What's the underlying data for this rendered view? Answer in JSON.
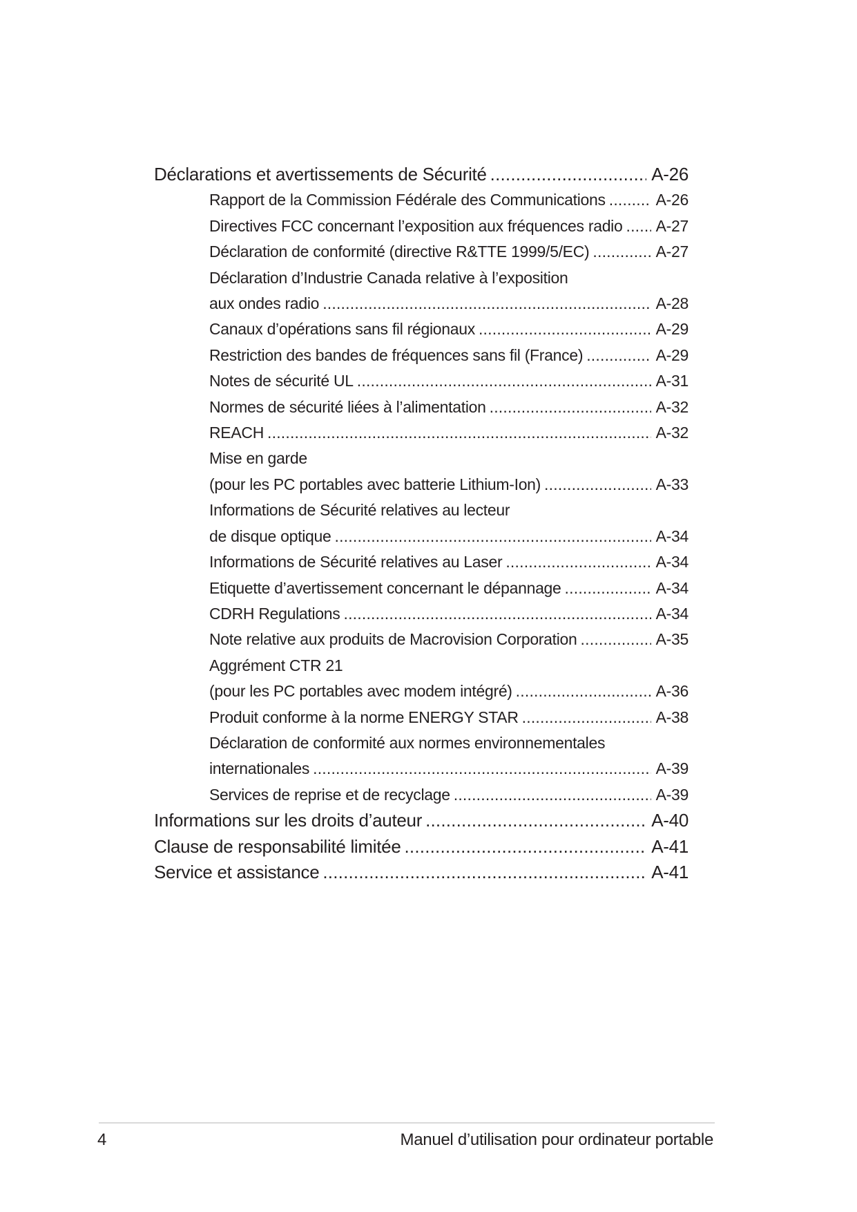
{
  "toc": {
    "entries": [
      {
        "level": 0,
        "lines": [
          "Déclarations et avertissements de Sécurité"
        ],
        "page": "A-26"
      },
      {
        "level": 1,
        "lines": [
          "Rapport de la Commission Fédérale des Communications"
        ],
        "page": "A-26"
      },
      {
        "level": 1,
        "lines": [
          "Directives FCC concernant l’exposition aux fréquences radio"
        ],
        "page": "A-27"
      },
      {
        "level": 1,
        "lines": [
          "Déclaration de conformité (directive R&TTE 1999/5/EC)"
        ],
        "page": "A-27"
      },
      {
        "level": 1,
        "lines": [
          "Déclaration d’Industrie Canada relative à l’exposition",
          "aux ondes radio"
        ],
        "page": "A-28"
      },
      {
        "level": 1,
        "lines": [
          "Canaux d’opérations sans fil régionaux"
        ],
        "page": "A-29"
      },
      {
        "level": 1,
        "lines": [
          "Restriction des bandes de fréquences sans fil (France)"
        ],
        "page": "A-29"
      },
      {
        "level": 1,
        "lines": [
          "Notes de sécurité UL"
        ],
        "page": "A-31"
      },
      {
        "level": 1,
        "lines": [
          "Normes de sécurité liées à l’alimentation"
        ],
        "page": "A-32"
      },
      {
        "level": 1,
        "lines": [
          "REACH"
        ],
        "page": "A-32"
      },
      {
        "level": 1,
        "lines": [
          "Mise en garde",
          "(pour les PC portables avec batterie Lithium-Ion)"
        ],
        "page": "A-33"
      },
      {
        "level": 1,
        "lines": [
          "Informations de Sécurité relatives au lecteur",
          "de disque optique"
        ],
        "page": "A-34"
      },
      {
        "level": 1,
        "lines": [
          "Informations de Sécurité relatives au Laser"
        ],
        "page": "A-34"
      },
      {
        "level": 1,
        "lines": [
          "Etiquette d’avertissement concernant le dépannage"
        ],
        "page": "A-34"
      },
      {
        "level": 1,
        "lines": [
          "CDRH Regulations"
        ],
        "page": "A-34"
      },
      {
        "level": 1,
        "lines": [
          "Note relative aux produits de Macrovision Corporation"
        ],
        "page": "A-35"
      },
      {
        "level": 1,
        "lines": [
          "Aggrément CTR 21",
          "(pour les PC portables avec modem intégré)"
        ],
        "page": "A-36"
      },
      {
        "level": 1,
        "lines": [
          "Produit conforme à la norme ENERGY STAR"
        ],
        "page": "A-38"
      },
      {
        "level": 1,
        "lines": [
          "Déclaration de conformité aux normes environnementales",
          "internationales"
        ],
        "page": "A-39"
      },
      {
        "level": 1,
        "lines": [
          "Services de reprise et de recyclage"
        ],
        "page": "A-39"
      },
      {
        "level": 0,
        "lines": [
          "Informations sur les droits d’auteur"
        ],
        "page": "A-40"
      },
      {
        "level": 0,
        "lines": [
          "Clause de responsabilité limitée"
        ],
        "page": "A-41"
      },
      {
        "level": 0,
        "lines": [
          "Service et assistance"
        ],
        "page": "A-41"
      }
    ]
  },
  "footer": {
    "page_number": "4",
    "footer_text": "Manuel d’utilisation pour ordinateur portable"
  },
  "colors": {
    "text": "#231f20",
    "rule": "#d9d9d9",
    "background": "#ffffff"
  }
}
